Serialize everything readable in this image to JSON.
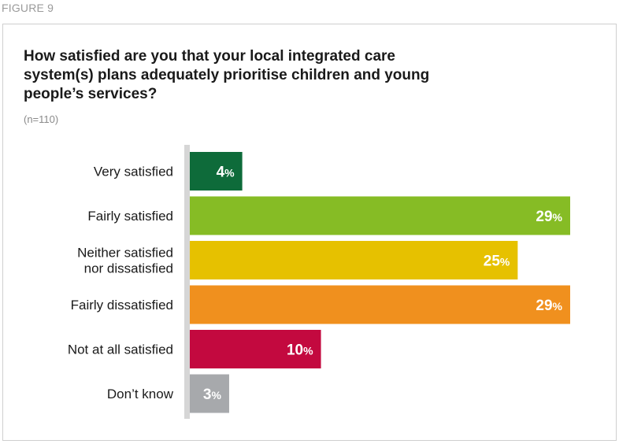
{
  "figure_label": "FIGURE 9",
  "title": "How satisfied are you that your local integrated care system(s) plans adequately prioritise children and young people’s services?",
  "subtitle": "(n=110)",
  "chart_data": {
    "type": "bar",
    "orientation": "horizontal",
    "categories": [
      [
        "Very satisfied"
      ],
      [
        "Fairly satisfied"
      ],
      [
        "Neither satisfied",
        "nor dissatisfied"
      ],
      [
        "Fairly dissatisfied"
      ],
      [
        "Not at all satisfied"
      ],
      [
        "Don’t know"
      ]
    ],
    "values": [
      4,
      29,
      25,
      29,
      10,
      3
    ],
    "unit": "%",
    "colors": [
      "#0e6b3a",
      "#86bc25",
      "#e6c100",
      "#f0901e",
      "#c3093f",
      "#a7a9ac"
    ],
    "axis_color": "#d6d6d6",
    "xlim": [
      0,
      29
    ],
    "grid": false,
    "legend": "none"
  }
}
